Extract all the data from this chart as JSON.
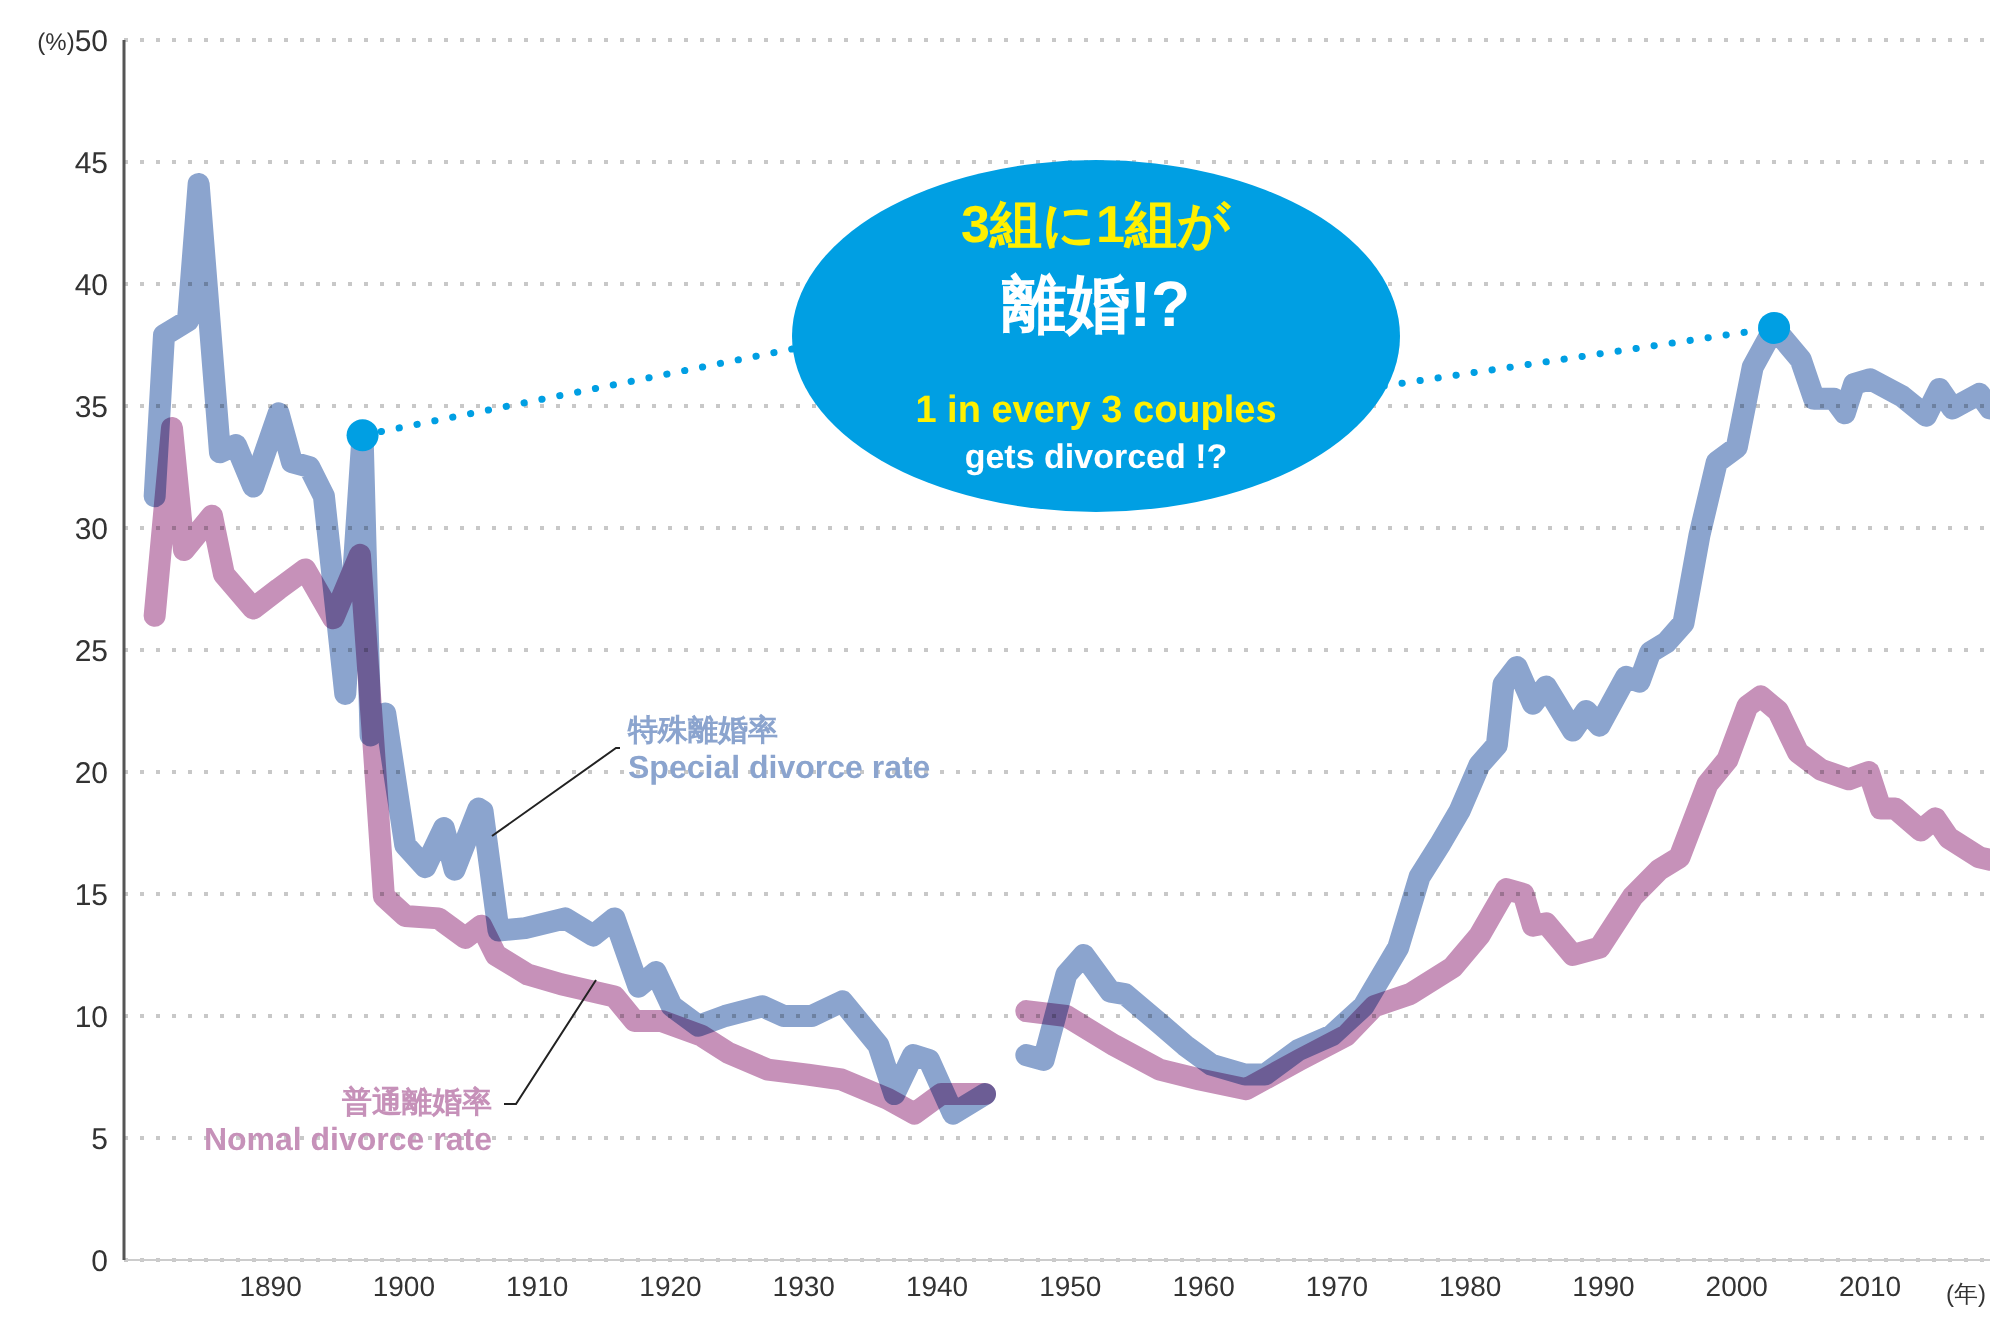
{
  "chart_data": {
    "type": "line",
    "ylabel": "(%)",
    "xlabel": "(年)",
    "xlim": [
      1879,
      2019
    ],
    "ylim": [
      0,
      50
    ],
    "xticks": [
      1890,
      1900,
      1910,
      1920,
      1930,
      1940,
      1950,
      1960,
      1970,
      1980,
      1990,
      2000,
      2010
    ],
    "yticks": [
      0,
      5,
      10,
      15,
      20,
      25,
      30,
      35,
      40,
      45,
      50
    ],
    "grid": "y",
    "marker": "none",
    "line_style": "solid",
    "series": [
      {
        "name": "特殊離婚率\nSpecial divorce rate",
        "color": "#8ba4ce",
        "x": [
          1881.3,
          1882,
          1883.8,
          1884.6,
          1886.2,
          1887.4,
          1888.7,
          1890.6,
          1891.6,
          1892.9,
          1894,
          1895.6,
          1896.9,
          1897.5,
          1898.6,
          1900.1,
          1901.6,
          1903,
          1903.8,
          1905.6,
          1905.9,
          1907.1,
          1909.1,
          1912.1,
          1914.2,
          1915.8,
          1917.6,
          1918.9,
          1920.1,
          1922.1,
          1924.1,
          1926.9,
          1928.5,
          1930.6,
          1932.9,
          1935.6,
          1936.8,
          1938.2,
          1939.4,
          1941.2,
          1943.6,
          1945,
          1946.7,
          1948,
          1949.7,
          1951,
          1953,
          1954.1,
          1956.7,
          1958.6,
          1960.6,
          1963.1,
          1964.6,
          1967.1,
          1969.6,
          1972,
          1974.6,
          1976.2,
          1977.7,
          1979.2,
          1980.7,
          1982,
          1982.5,
          1983.5,
          1984.7,
          1985.7,
          1987.7,
          1988.7,
          1989.7,
          1991.7,
          1992.7,
          1993.5,
          1994.7,
          1996,
          1997.2,
          1998.5,
          2000,
          2001.2,
          2002.8,
          2004.8,
          2005.8,
          2007.3,
          2008.1,
          2008.8,
          2010,
          2012.4,
          2014.2,
          2015.2,
          2016.2,
          2018.2,
          2019
        ],
        "values": [
          31.3,
          37.9,
          38.5,
          44.1,
          33.1,
          33.4,
          31.7,
          34.7,
          32.7,
          32.5,
          31.3,
          23.2,
          33.8,
          21.5,
          22.4,
          17.0,
          16.1,
          17.7,
          16.0,
          18.5,
          18.4,
          13.5,
          13.6,
          14.0,
          13.3,
          14.0,
          11.2,
          11.8,
          10.4,
          9.6,
          10.0,
          10.4,
          10.0,
          10.0,
          10.6,
          8.8,
          6.8,
          8.4,
          8.2,
          6.0,
          6.8,
          null,
          8.4,
          8.2,
          11.7,
          12.5,
          11.0,
          10.9,
          9.7,
          8.8,
          8.0,
          7.6,
          7.6,
          8.6,
          9.2,
          10.4,
          12.8,
          15.7,
          17.0,
          18.4,
          20.3,
          21.1,
          23.6,
          24.3,
          22.8,
          23.5,
          21.7,
          22.5,
          21.9,
          23.9,
          23.7,
          24.9,
          25.3,
          26.1,
          29.7,
          32.7,
          33.3,
          36.6,
          38.2,
          36.9,
          35.3,
          35.3,
          34.7,
          35.9,
          36.1,
          35.4,
          34.6,
          35.7,
          34.9,
          35.5,
          34.9
        ]
      },
      {
        "name": "普通離婚率\nNomal divorce rate",
        "color": "#c691b9",
        "x": [
          1881.3,
          1882.6,
          1883.5,
          1885.6,
          1886.5,
          1888.7,
          1890.6,
          1892.6,
          1894.7,
          1896.7,
          1897.7,
          1898.5,
          1900.1,
          1902.6,
          1904.6,
          1905.8,
          1906.9,
          1909.3,
          1911.8,
          1915.8,
          1917.3,
          1919.3,
          1922.3,
          1924.3,
          1927.3,
          1930.3,
          1932.8,
          1936.3,
          1938.3,
          1940.3,
          1943.6,
          1945,
          1946.7,
          1949.7,
          1953.3,
          1956.7,
          1959.7,
          1963.2,
          1967.2,
          1970.7,
          1972.8,
          1975.5,
          1978.7,
          1980.7,
          1982.7,
          1984,
          1984.7,
          1985.7,
          1987.7,
          1989.7,
          1992.2,
          1994.2,
          1995.7,
          1997.8,
          1999.3,
          2000.8,
          2001.8,
          2003.1,
          2004.6,
          2006.3,
          2008.4,
          2009.9,
          2010.8,
          2011.9,
          2013.8,
          2014.9,
          2015.9,
          2018.2,
          2019
        ],
        "values": [
          26.4,
          34.1,
          29.1,
          30.5,
          28.1,
          26.7,
          27.5,
          28.3,
          26.3,
          28.9,
          21.3,
          14.9,
          14.1,
          14.0,
          13.2,
          13.7,
          12.5,
          11.7,
          11.3,
          10.8,
          9.8,
          9.8,
          9.2,
          8.5,
          7.8,
          7.6,
          7.4,
          6.6,
          6.0,
          6.8,
          6.8,
          null,
          10.2,
          10.0,
          8.8,
          7.8,
          7.4,
          7.0,
          8.2,
          9.2,
          10.4,
          10.9,
          12.0,
          13.3,
          15.2,
          15.0,
          13.7,
          13.8,
          12.5,
          12.8,
          14.9,
          16.0,
          16.5,
          19.5,
          20.5,
          22.7,
          23.1,
          22.5,
          20.8,
          20.1,
          19.7,
          20.0,
          18.5,
          18.5,
          17.6,
          18.1,
          17.3,
          16.5,
          16.4
        ]
      }
    ],
    "annotations": [
      "3組に1組が",
      {
        "text": "離婚!?",
        "x": 1896.9,
        "y": 33.8
      },
      {
        "text": "1 in every 3 couples\ngets divorced !?",
        "x": 2002.8,
        "y": 38.2
      }
    ]
  }
}
